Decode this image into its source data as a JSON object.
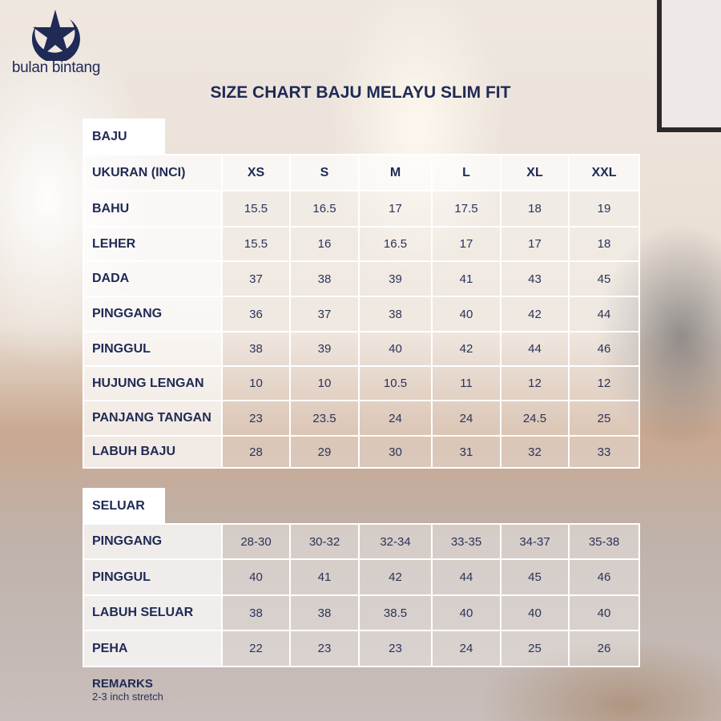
{
  "brand": {
    "name": "bulan bintang",
    "logo": "crescent-star-icon"
  },
  "title": "SIZE CHART BAJU MELAYU SLIM FIT",
  "baju": {
    "label": "BAJU",
    "header": [
      "UKURAN (INCI)",
      "XS",
      "S",
      "M",
      "L",
      "XL",
      "XXL"
    ],
    "rows": [
      [
        "BAHU",
        "15.5",
        "16.5",
        "17",
        "17.5",
        "18",
        "19"
      ],
      [
        "LEHER",
        "15.5",
        "16",
        "16.5",
        "17",
        "17",
        "18"
      ],
      [
        "DADA",
        "37",
        "38",
        "39",
        "41",
        "43",
        "45"
      ],
      [
        "PINGGANG",
        "36",
        "37",
        "38",
        "40",
        "42",
        "44"
      ],
      [
        "PINGGUL",
        "38",
        "39",
        "40",
        "42",
        "44",
        "46"
      ],
      [
        "HUJUNG LENGAN",
        "10",
        "10",
        "10.5",
        "11",
        "12",
        "12"
      ],
      [
        "PANJANG TANGAN",
        "23",
        "23.5",
        "24",
        "24",
        "24.5",
        "25"
      ],
      [
        "LABUH BAJU",
        "28",
        "29",
        "30",
        "31",
        "32",
        "33"
      ]
    ]
  },
  "seluar": {
    "label": "SELUAR",
    "rows": [
      [
        "PINGGANG",
        "28-30",
        "30-32",
        "32-34",
        "33-35",
        "34-37",
        "35-38"
      ],
      [
        "PINGGUL",
        "40",
        "41",
        "42",
        "44",
        "45",
        "46"
      ],
      [
        "LABUH SELUAR",
        "38",
        "38",
        "38.5",
        "40",
        "40",
        "40"
      ],
      [
        "PEHA",
        "22",
        "23",
        "23",
        "24",
        "25",
        "26"
      ]
    ]
  },
  "remarks": {
    "label": "REMARKS",
    "text": "2-3 inch stretch"
  }
}
